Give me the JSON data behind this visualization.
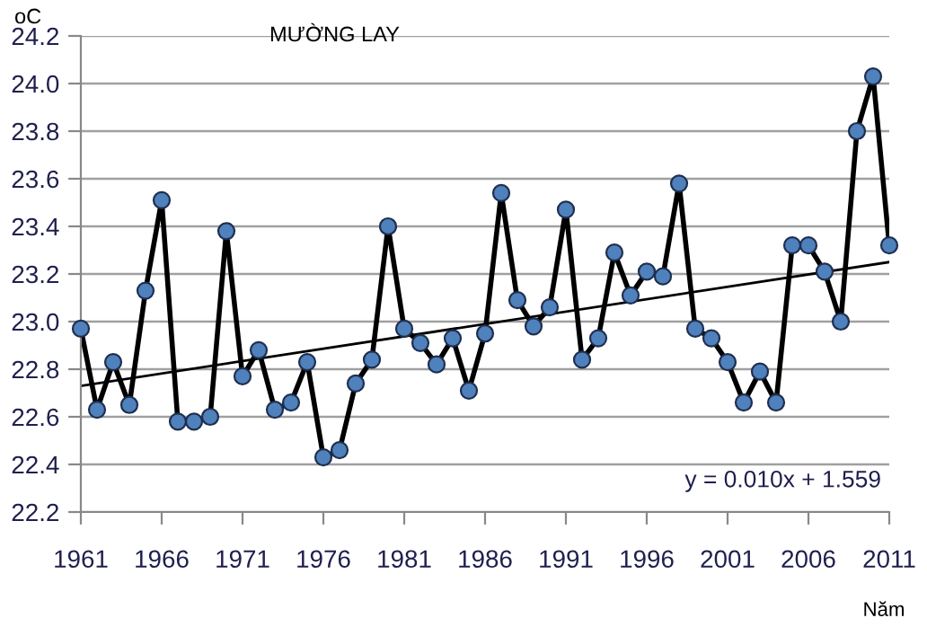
{
  "chart_data": {
    "type": "line",
    "title": "MƯỜNG LAY",
    "ylabel": "oC",
    "xlabel": "Năm",
    "x": [
      1961,
      1962,
      1963,
      1964,
      1965,
      1966,
      1967,
      1968,
      1969,
      1970,
      1971,
      1972,
      1973,
      1974,
      1975,
      1976,
      1977,
      1978,
      1979,
      1980,
      1981,
      1982,
      1983,
      1984,
      1985,
      1986,
      1987,
      1988,
      1989,
      1990,
      1991,
      1992,
      1993,
      1994,
      1995,
      1996,
      1997,
      1998,
      1999,
      2000,
      2001,
      2002,
      2003,
      2004,
      2005,
      2006,
      2007,
      2008,
      2009,
      2010,
      2011
    ],
    "series": [
      {
        "color": "#000000",
        "marker": "circle",
        "colors": [
          "#4f81bd",
          "#4f81bd",
          "#4f81bd",
          "#4f81bd",
          "#4f81bd",
          "#4f81bd",
          "#4f81bd",
          "#4f81bd",
          "#4f81bd",
          "#4f81bd",
          "#4f81bd",
          "#4f81bd",
          "#4f81bd",
          "#4f81bd",
          "#4f81bd",
          "#4f81bd",
          "#4f81bd",
          "#4f81bd",
          "#4f81bd",
          "#4f81bd",
          "#4f81bd",
          "#4f81bd",
          "#4f81bd",
          "#4f81bd",
          "#4f81bd",
          "#4f81bd",
          "#4f81bd",
          "#4f81bd",
          "#4f81bd",
          "#4f81bd",
          "#4f81bd",
          "#4f81bd",
          "#4f81bd",
          "#4f81bd",
          "#4f81bd",
          "#4f81bd",
          "#4f81bd",
          "#4f81bd",
          "#4f81bd",
          "#4f81bd",
          "#4f81bd",
          "#4f81bd",
          "#4f81bd",
          "#4f81bd",
          "#4f81bd",
          "#4f81bd",
          "#4f81bd",
          "#4f81bd",
          "#4f81bd",
          "#4f81bd",
          "#4f81bd"
        ],
        "values": [
          22.97,
          22.63,
          22.83,
          22.65,
          23.13,
          23.51,
          22.58,
          22.58,
          22.6,
          23.38,
          22.77,
          22.88,
          22.63,
          22.66,
          22.83,
          22.43,
          22.46,
          22.74,
          22.84,
          23.4,
          22.97,
          22.91,
          22.82,
          22.93,
          22.71,
          22.95,
          23.54,
          23.09,
          22.98,
          23.06,
          23.47,
          22.84,
          22.93,
          23.29,
          23.11,
          23.21,
          23.19,
          23.58,
          22.97,
          22.93,
          22.83,
          22.66,
          22.79,
          22.66,
          23.32,
          23.32,
          23.21,
          23.0,
          23.8,
          24.03,
          23.32
        ]
      },
      {
        "type": "line",
        "color": "#000000",
        "x": [
          1961,
          2011
        ],
        "values": [
          22.73,
          23.25
        ]
      }
    ],
    "xlim": [
      1961,
      2011
    ],
    "xticks": [
      1961,
      1966,
      1971,
      1976,
      1981,
      1986,
      1991,
      1996,
      2001,
      2006,
      2011
    ],
    "ylim": [
      22.2,
      24.2
    ],
    "yticks": [
      22.2,
      22.4,
      22.6,
      22.8,
      {
        "value": 23,
        "label": "23.0"
      },
      23.2,
      23.4,
      23.6,
      23.8,
      {
        "value": 24,
        "label": "24.0"
      },
      24.2
    ],
    "grid": "y",
    "annotations": [
      "y = 0.010x + 1.559"
    ]
  }
}
